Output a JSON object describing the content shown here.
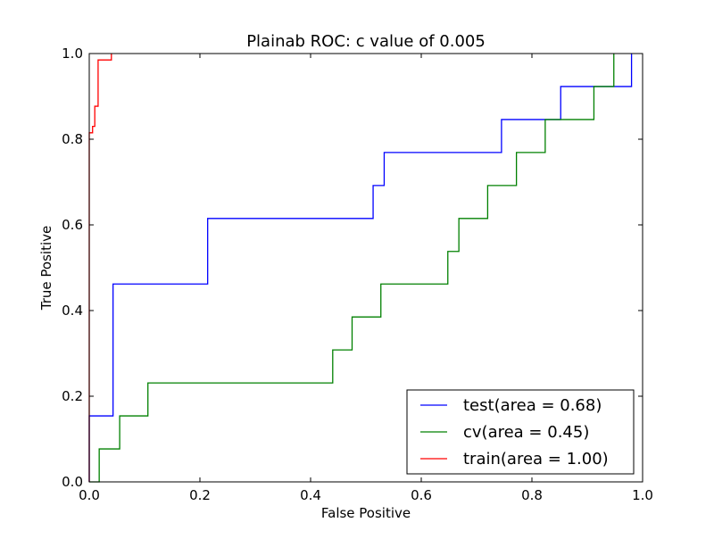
{
  "chart_data": {
    "type": "line",
    "title": "Plainab ROC: c value of 0.005",
    "xlabel": "False Positive",
    "ylabel": "True Positive",
    "xlim": [
      0.0,
      1.0
    ],
    "ylim": [
      0.0,
      1.0
    ],
    "xticks": [
      "0.0",
      "0.2",
      "0.4",
      "0.6",
      "0.8",
      "1.0"
    ],
    "yticks": [
      "0.0",
      "0.2",
      "0.4",
      "0.6",
      "0.8",
      "1.0"
    ],
    "grid": false,
    "legend_position": "lower-right",
    "series": [
      {
        "name": "test(area = 0.68)",
        "color": "#0000ff",
        "x": [
          0.0,
          0.0,
          0.043,
          0.043,
          0.214,
          0.214,
          0.513,
          0.513,
          0.533,
          0.533,
          0.745,
          0.745,
          0.852,
          0.852,
          0.98,
          0.98
        ],
        "y": [
          0.0,
          0.154,
          0.154,
          0.462,
          0.462,
          0.615,
          0.615,
          0.692,
          0.692,
          0.769,
          0.769,
          0.846,
          0.846,
          0.923,
          0.923,
          1.0
        ]
      },
      {
        "name": "cv(area = 0.45)",
        "color": "#008000",
        "x": [
          0.0,
          0.018,
          0.018,
          0.055,
          0.055,
          0.106,
          0.106,
          0.44,
          0.44,
          0.475,
          0.475,
          0.527,
          0.527,
          0.648,
          0.648,
          0.668,
          0.668,
          0.72,
          0.72,
          0.772,
          0.772,
          0.824,
          0.824,
          0.912,
          0.912,
          0.948,
          0.948
        ],
        "y": [
          0.0,
          0.0,
          0.077,
          0.077,
          0.154,
          0.154,
          0.231,
          0.231,
          0.308,
          0.308,
          0.385,
          0.385,
          0.462,
          0.462,
          0.538,
          0.538,
          0.615,
          0.615,
          0.692,
          0.692,
          0.769,
          0.769,
          0.846,
          0.846,
          0.923,
          0.923,
          1.0
        ]
      },
      {
        "name": "train(area = 1.00)",
        "color": "#ff0000",
        "x": [
          0.0,
          0.0,
          0.006,
          0.006,
          0.01,
          0.01,
          0.016,
          0.016,
          0.04,
          0.04
        ],
        "y": [
          0.0,
          0.815,
          0.815,
          0.83,
          0.83,
          0.877,
          0.877,
          0.985,
          0.985,
          1.0
        ]
      }
    ]
  }
}
